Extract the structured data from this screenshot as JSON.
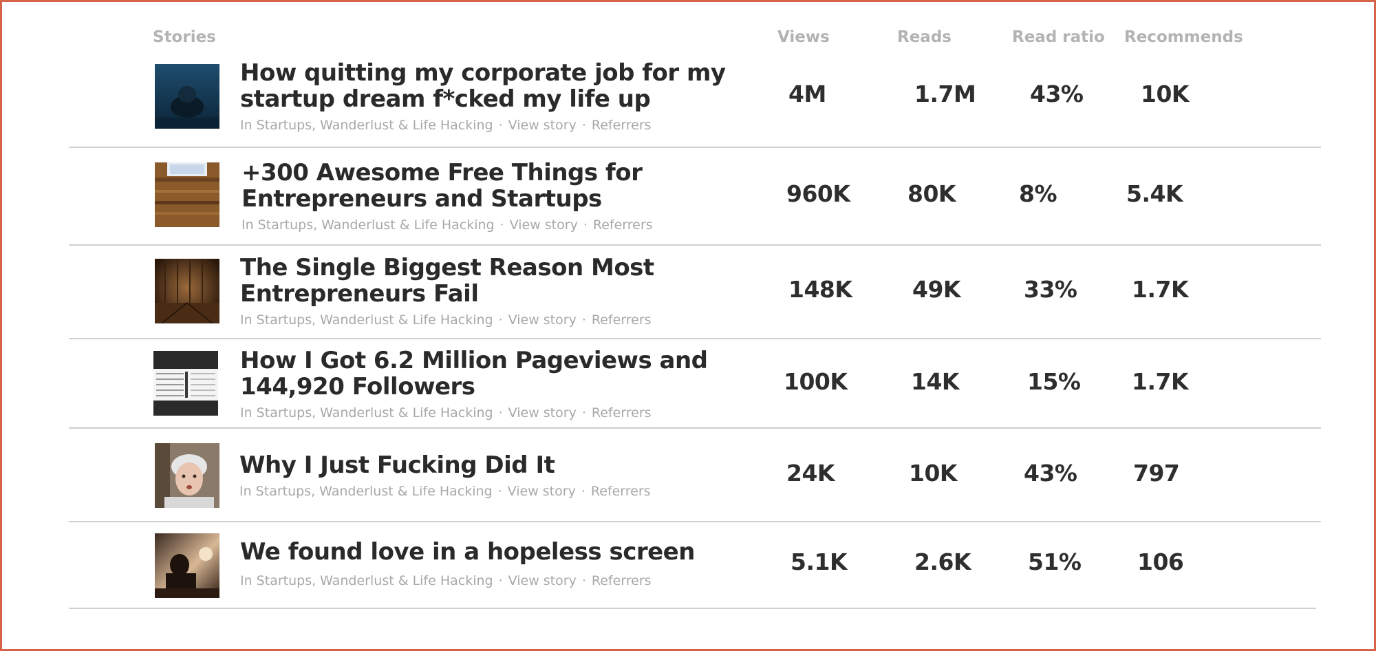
{
  "header": {
    "stories": "Stories",
    "views": "Views",
    "reads": "Reads",
    "read_ratio": "Read ratio",
    "recommends": "Recommends"
  },
  "stories": [
    {
      "title_line1": "How quitting my corporate job for my",
      "title_line2": "startup dream f*cked my life up",
      "publication": "In Startups, Wanderlust & Life Hacking",
      "view_story": "View story",
      "referrers": "Referrers",
      "views": "4M",
      "reads": "1.7M",
      "read_ratio": "43%",
      "recommends": "10K",
      "thumb": "underwater-person-image"
    },
    {
      "title_line1": "+300 Awesome Free Things for",
      "title_line2": "Entrepreneurs and Startups",
      "publication": "In Startups, Wanderlust & Life Hacking",
      "view_story": "View story",
      "referrers": "Referrers",
      "views": "960K",
      "reads": "80K",
      "read_ratio": "8%",
      "recommends": "5.4K",
      "thumb": "wooden-desk-laptop-image"
    },
    {
      "title_line1": "The Single Biggest Reason Most",
      "title_line2": "Entrepreneurs Fail",
      "publication": "In Startups, Wanderlust & Life Hacking",
      "view_story": "View story",
      "referrers": "Referrers",
      "views": "148K",
      "reads": "49K",
      "read_ratio": "33%",
      "recommends": "1.7K",
      "thumb": "wooden-room-image"
    },
    {
      "title_line1": "How I Got 6.2 Million Pageviews and",
      "title_line2": "144,920 Followers",
      "publication": "In Startups, Wanderlust & Life Hacking",
      "view_story": "View story",
      "referrers": "Referrers",
      "views": "100K",
      "reads": "14K",
      "read_ratio": "15%",
      "recommends": "1.7K",
      "thumb": "stats-screenshot-image"
    },
    {
      "title_line1": "Why I Just Fucking Did It",
      "title_line2": "",
      "publication": "In Startups, Wanderlust & Life Hacking",
      "view_story": "View story",
      "referrers": "Referrers",
      "views": "24K",
      "reads": "10K",
      "read_ratio": "43%",
      "recommends": "797",
      "thumb": "elderly-woman-face-image"
    },
    {
      "title_line1": "We found love in a hopeless screen",
      "title_line2": "",
      "publication": "In Startups, Wanderlust & Life Hacking",
      "view_story": "View story",
      "referrers": "Referrers",
      "views": "5.1K",
      "reads": "2.6K",
      "read_ratio": "51%",
      "recommends": "106",
      "thumb": "sunset-silhouette-image"
    }
  ]
}
